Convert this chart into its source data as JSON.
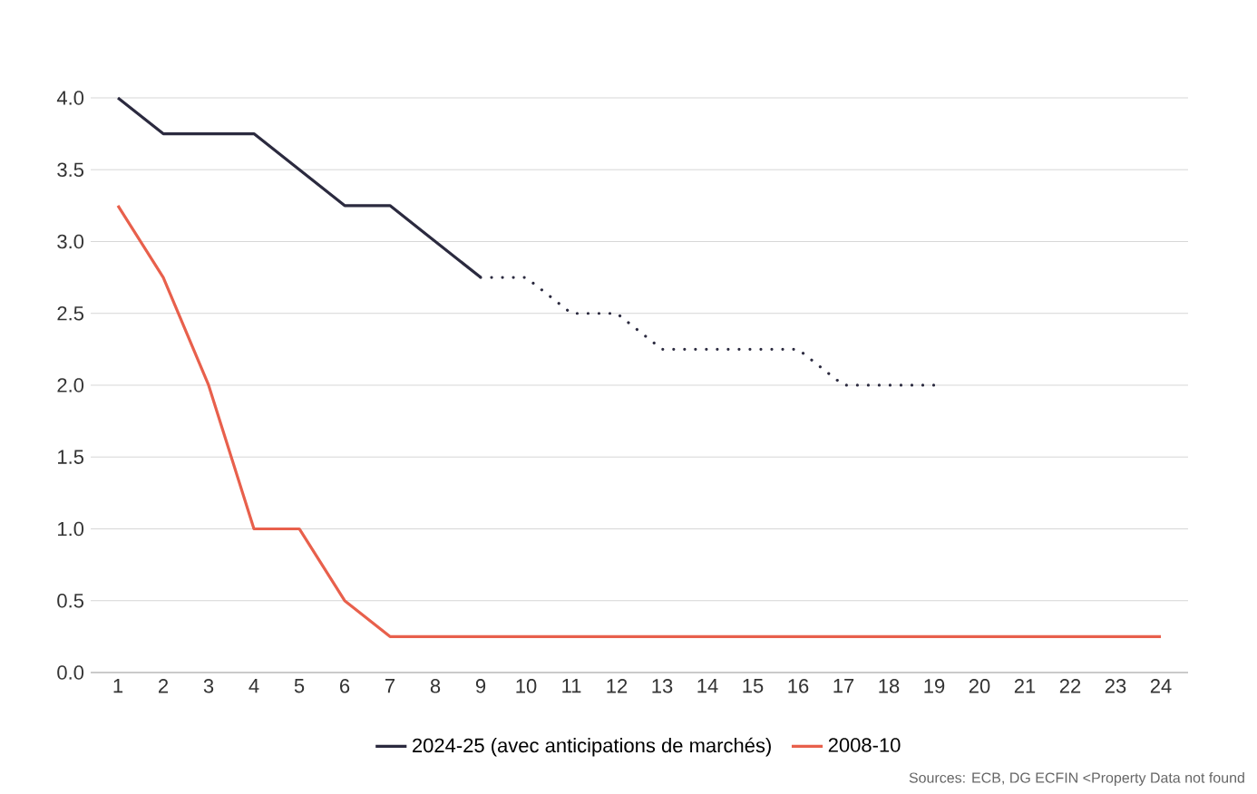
{
  "chart_data": {
    "type": "line",
    "categories": [
      "1",
      "2",
      "3",
      "4",
      "5",
      "6",
      "7",
      "8",
      "9",
      "10",
      "11",
      "12",
      "13",
      "14",
      "15",
      "16",
      "17",
      "18",
      "19",
      "20",
      "21",
      "22",
      "23",
      "24"
    ],
    "series": [
      {
        "name": "2024-25 (avec anticipations de marchés)",
        "color": "#2b2a3f",
        "line_style": "solid",
        "values": [
          4.0,
          3.75,
          3.75,
          3.75,
          3.5,
          3.25,
          3.25,
          3.0,
          2.75,
          null,
          null,
          null,
          null,
          null,
          null,
          null,
          null,
          null,
          null,
          null,
          null,
          null,
          null,
          null
        ]
      },
      {
        "color": "#2b2a3f",
        "line_style": "dotted",
        "values": [
          null,
          null,
          null,
          null,
          null,
          null,
          null,
          null,
          2.75,
          2.75,
          2.5,
          2.5,
          2.25,
          2.25,
          2.25,
          2.25,
          2.0,
          2.0,
          2.0,
          null,
          null,
          null,
          null,
          null
        ]
      },
      {
        "name": "2008-10",
        "color": "#e8604c",
        "line_style": "solid",
        "values": [
          3.25,
          2.75,
          2.0,
          1.0,
          1.0,
          0.5,
          0.25,
          0.25,
          0.25,
          0.25,
          0.25,
          0.25,
          0.25,
          0.25,
          0.25,
          0.25,
          0.25,
          0.25,
          0.25,
          0.25,
          0.25,
          0.25,
          0.25,
          0.25
        ]
      }
    ],
    "ylim": [
      0,
      4.0
    ],
    "yticks": [
      {
        "value": 0,
        "label": "0.0"
      },
      {
        "value": 0.5,
        "label": "0.5"
      },
      {
        "value": 1,
        "label": "1.0"
      },
      {
        "value": 1.5,
        "label": "1.5"
      },
      {
        "value": 2,
        "label": "2.0"
      },
      {
        "value": 2.5,
        "label": "2.5"
      },
      {
        "value": 3,
        "label": "3.0"
      },
      {
        "value": 3.5,
        "label": "3.5"
      },
      {
        "value": 4,
        "label": "4.0"
      }
    ],
    "grid": "y",
    "legend": "bottom",
    "marker": "none",
    "annotations": [
      "Sources: ECB, DG ECFIN <Property Data not found"
    ]
  }
}
